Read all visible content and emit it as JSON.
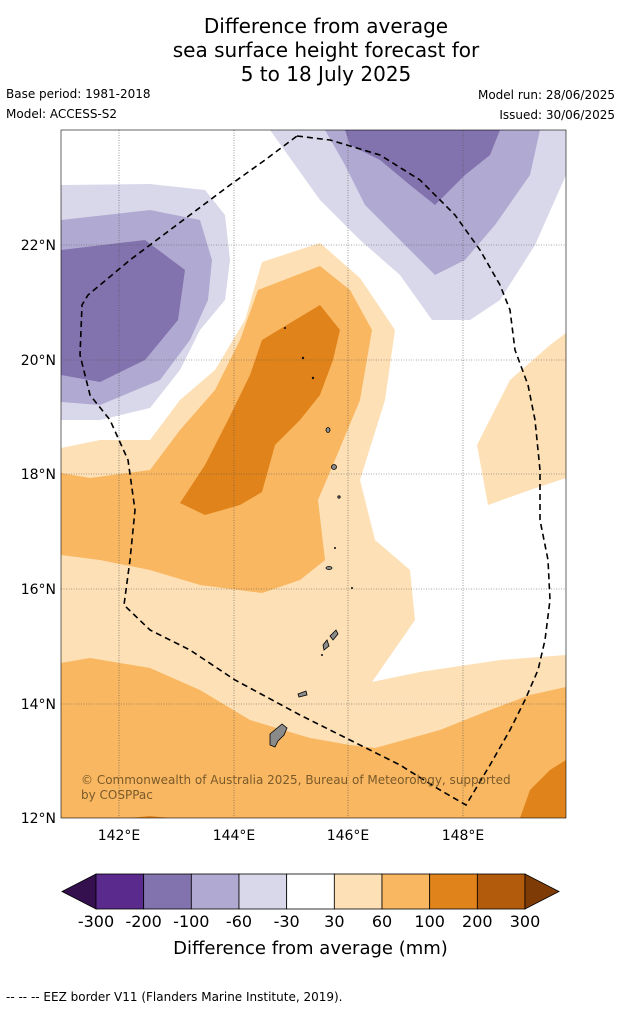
{
  "title": {
    "line1": "Difference from average",
    "line2": "sea surface height forecast for",
    "line3": "5 to 18 July 2025"
  },
  "meta": {
    "base_period": "Base period: 1981-2018",
    "model": "Model: ACCESS-S2",
    "model_run": "Model run: 28/06/2025",
    "issued": "Issued: 30/06/2025"
  },
  "map": {
    "lat_labels": [
      "22°N",
      "20°N",
      "18°N",
      "16°N",
      "14°N",
      "12°N"
    ],
    "lon_labels": [
      "142°E",
      "144°E",
      "146°E",
      "148°E"
    ],
    "copyright": "© Commonwealth of Australia 2025, Bureau of Meteorology, supported by COSPPac",
    "copyright_line1": "© Commonwealth of Australia 2025, Bureau of Meteorology, supported",
    "copyright_line2": "by COSPPac"
  },
  "colorbar": {
    "title": "Difference from average (mm)",
    "ticks": [
      "-300",
      "-200",
      "-100",
      "-60",
      "-30",
      "30",
      "60",
      "100",
      "200",
      "300"
    ],
    "colors": [
      "#35104f",
      "#5a2a8c",
      "#8272ad",
      "#b0a9d1",
      "#d9d8ea",
      "#ffffff",
      "#fde0b5",
      "#f9b761",
      "#e0831a",
      "#b35b0c",
      "#7e3b06"
    ]
  },
  "footer": "--  --  -- EEZ border V11 (Flanders Marine Institute, 2019)."
}
